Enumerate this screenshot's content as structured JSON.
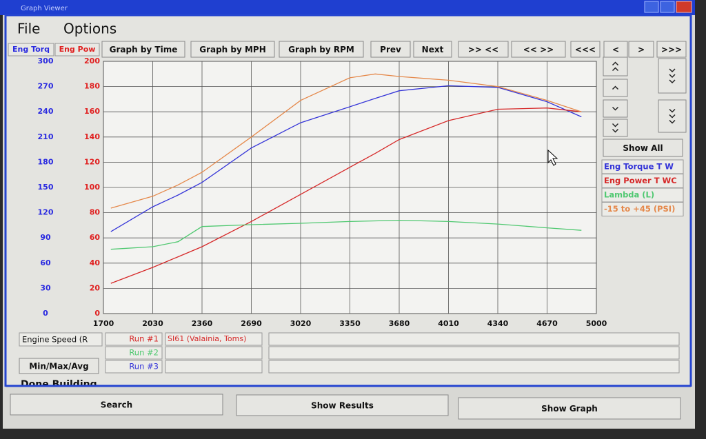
{
  "window": {
    "title": "Graph Viewer"
  },
  "menu": [
    "File",
    "Options"
  ],
  "toolbar": [
    "Graph by Time",
    "Graph by MPH",
    "Graph by RPM",
    "Prev",
    "Next",
    ">> <<",
    "<< >>",
    "<<<",
    "<",
    ">",
    ">>>"
  ],
  "side_panel": {
    "button": "Show All"
  },
  "chart_data": {
    "type": "line",
    "y_label": "Eng Torq",
    "y2_label": "Eng Pow",
    "y_color": "#2a2ae0",
    "y2_color": "#e02020",
    "x": [
      1750,
      2030,
      2200,
      2360,
      2690,
      3020,
      3350,
      3520,
      3680,
      4010,
      4340,
      4670,
      4900
    ],
    "xlim": [
      1700,
      5000
    ],
    "xticks": [
      1700,
      2030,
      2360,
      2690,
      3020,
      3350,
      3680,
      4010,
      4340,
      4670,
      5000
    ],
    "ylim": [
      0,
      300
    ],
    "yticks": [
      0,
      30,
      60,
      90,
      120,
      150,
      180,
      210,
      240,
      270,
      300
    ],
    "y2lim": [
      0,
      200
    ],
    "y2ticks": [
      0,
      20,
      40,
      60,
      80,
      100,
      120,
      140,
      160,
      180,
      200
    ],
    "grid": true,
    "series": [
      {
        "name": "Eng Torque T W",
        "color": "#3535d8",
        "axis": "y",
        "values": [
          97.5,
          127,
          141,
          156,
          197,
          227,
          246,
          256,
          265,
          271,
          269,
          252,
          234
        ]
      },
      {
        "name": "Eng Power T WC",
        "color": "#d62828",
        "axis": "y2",
        "values": [
          24,
          36.6,
          45,
          53,
          73,
          94.5,
          116,
          127,
          138,
          153,
          162,
          163,
          160
        ]
      },
      {
        "name": "Lambda (L)",
        "color": "#4fc870",
        "axis": "y2",
        "values": [
          51,
          53,
          57,
          69,
          70.5,
          71.6,
          73,
          73.5,
          74,
          73,
          71,
          68,
          66
        ]
      },
      {
        "name": "-15 to +45 (PSI)",
        "color": "#e5884a",
        "axis": "y2",
        "values": [
          83.6,
          93,
          102,
          112,
          140,
          169,
          187,
          190,
          188,
          185,
          180,
          169,
          160
        ]
      }
    ]
  },
  "runs_panel": {
    "channel": "Engine Speed (R",
    "stats_button": "Min/Max/Avg",
    "runs": [
      {
        "label": "Run #1",
        "name": "SI61 (Valainia, Toms)",
        "color": "#d62828"
      },
      {
        "label": "Run #2",
        "color": "#4fc870"
      },
      {
        "label": "Run #3",
        "color": "#3535d8"
      }
    ]
  },
  "status": "Done Building.",
  "bottom_buttons": [
    "Search",
    "Show Results",
    "Show Graph"
  ]
}
